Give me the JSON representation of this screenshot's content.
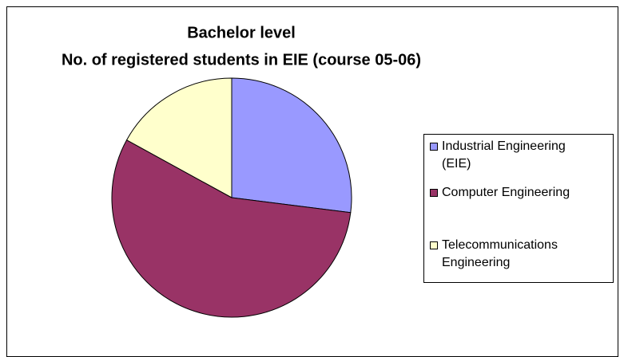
{
  "chart_data": {
    "type": "pie",
    "title": [
      "Bachelor level",
      "No. of registered students in EIE (course 05-06)"
    ],
    "categories": [
      "Industrial Engineering (EIE)",
      "Computer Engineering",
      "Telecommunications Engineering"
    ],
    "values": [
      27,
      56,
      17
    ],
    "colors": [
      "#9999ff",
      "#993366",
      "#ffffcc"
    ],
    "legend": "right"
  }
}
